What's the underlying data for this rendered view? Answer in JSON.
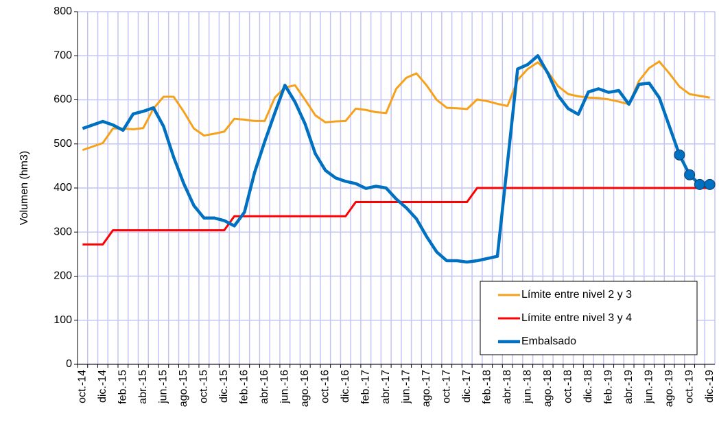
{
  "chart_data": {
    "type": "line",
    "y_label": "Volumen (hm3)",
    "categories": [
      "oct.-14",
      null,
      "dic.-14",
      null,
      "feb.-15",
      null,
      "abr.-15",
      null,
      "jun.-15",
      null,
      "ago.-15",
      null,
      "oct.-15",
      null,
      "dic.-15",
      null,
      "feb.-16",
      null,
      "abr.-16",
      null,
      "jun.-16",
      null,
      "ago.-16",
      null,
      "oct.-16",
      null,
      "dic.-16",
      null,
      "feb.-17",
      null,
      "abr.-17",
      null,
      "jun.-17",
      null,
      "ago.-17",
      null,
      "oct.-17",
      null,
      "dic.-17",
      null,
      "feb.-18",
      null,
      "abr.-18",
      null,
      "jun.-18",
      null,
      "ago.-18",
      null,
      "oct.-18",
      null,
      "dic.-18",
      null,
      "feb.-19",
      null,
      "abr.-19",
      null,
      "jun.-19",
      null,
      "ago.-19",
      null,
      "oct.-19",
      null,
      "dic.-19"
    ],
    "series": [
      {
        "name": "Límite entre nivel 2 y 3",
        "color": "#f7a11a",
        "width": 3,
        "values": [
          486,
          494,
          502,
          535,
          535,
          533,
          536,
          580,
          607,
          607,
          573,
          535,
          519,
          523,
          528,
          557,
          555,
          552,
          552,
          605,
          628,
          633,
          600,
          565,
          549,
          551,
          552,
          580,
          577,
          572,
          570,
          625,
          650,
          660,
          633,
          600,
          582,
          581,
          579,
          601,
          597,
          591,
          586,
          645,
          670,
          685,
          663,
          631,
          613,
          608,
          605,
          604,
          601,
          596,
          590,
          643,
          672,
          687,
          660,
          630,
          613,
          609,
          605
        ]
      },
      {
        "name": "Límite entre nivel 3 y 4",
        "color": "#ff0000",
        "width": 3,
        "values": [
          272,
          272,
          272,
          304,
          304,
          304,
          304,
          304,
          304,
          304,
          304,
          304,
          304,
          304,
          304,
          336,
          336,
          336,
          336,
          336,
          336,
          336,
          336,
          336,
          336,
          336,
          336,
          368,
          368,
          368,
          368,
          368,
          368,
          368,
          368,
          368,
          368,
          368,
          368,
          400,
          400,
          400,
          400,
          400,
          400,
          400,
          400,
          400,
          400,
          400,
          400,
          400,
          400,
          400,
          400,
          400,
          400,
          400,
          400,
          400,
          400,
          400,
          400
        ]
      },
      {
        "name": "Embalsado",
        "color": "#0070c0",
        "width": 4.5,
        "marker_from_index": 59,
        "values": [
          535,
          543,
          551,
          543,
          531,
          568,
          574,
          582,
          540,
          470,
          410,
          360,
          332,
          332,
          326,
          314,
          345,
          435,
          505,
          570,
          633,
          595,
          545,
          478,
          440,
          423,
          415,
          410,
          399,
          404,
          400,
          375,
          355,
          330,
          290,
          255,
          235,
          235,
          232,
          235,
          240,
          245,
          457,
          670,
          680,
          700,
          660,
          610,
          580,
          567,
          618,
          625,
          617,
          621,
          590,
          635,
          638,
          605,
          540,
          475,
          430,
          408,
          408
        ]
      }
    ],
    "ylim": [
      0,
      800
    ],
    "yticks": [
      0,
      100,
      200,
      300,
      400,
      500,
      600,
      700,
      800
    ],
    "grid": true,
    "grid_color": "#c4c4f4",
    "legend": "lower right"
  }
}
